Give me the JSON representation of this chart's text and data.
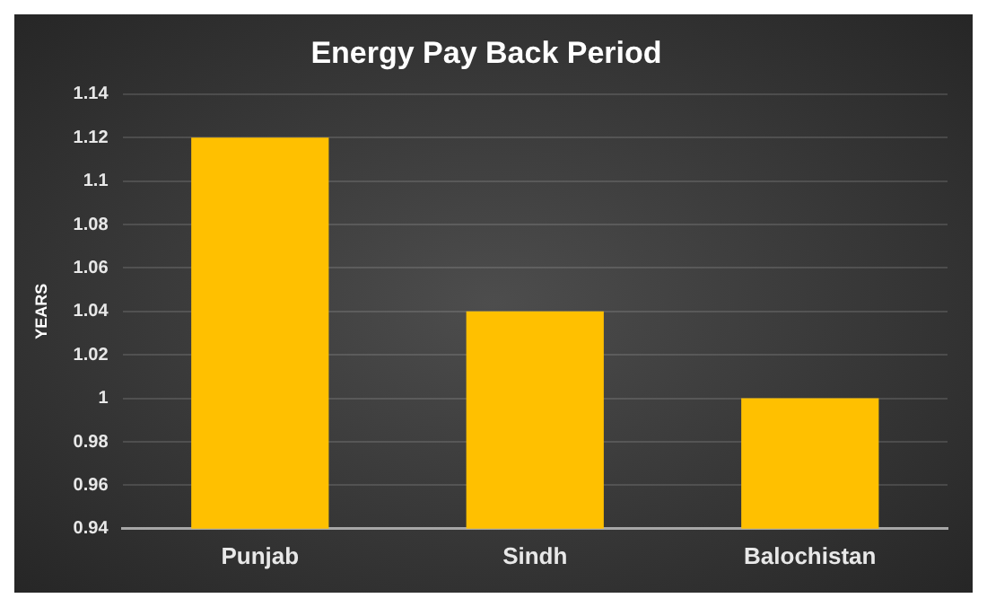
{
  "chart_data": {
    "type": "bar",
    "title": "Energy Pay Back Period",
    "ylabel": "YEARS",
    "categories": [
      "Punjab",
      "Sindh",
      "Balochistan"
    ],
    "values": [
      1.12,
      1.04,
      1.0
    ],
    "color": "#ffc000",
    "ylim": [
      0.94,
      1.14
    ],
    "yticks": [
      0.94,
      0.96,
      0.98,
      1,
      1.02,
      1.04,
      1.06,
      1.08,
      1.1,
      1.12,
      1.14
    ],
    "grid": "y",
    "legend": false
  }
}
